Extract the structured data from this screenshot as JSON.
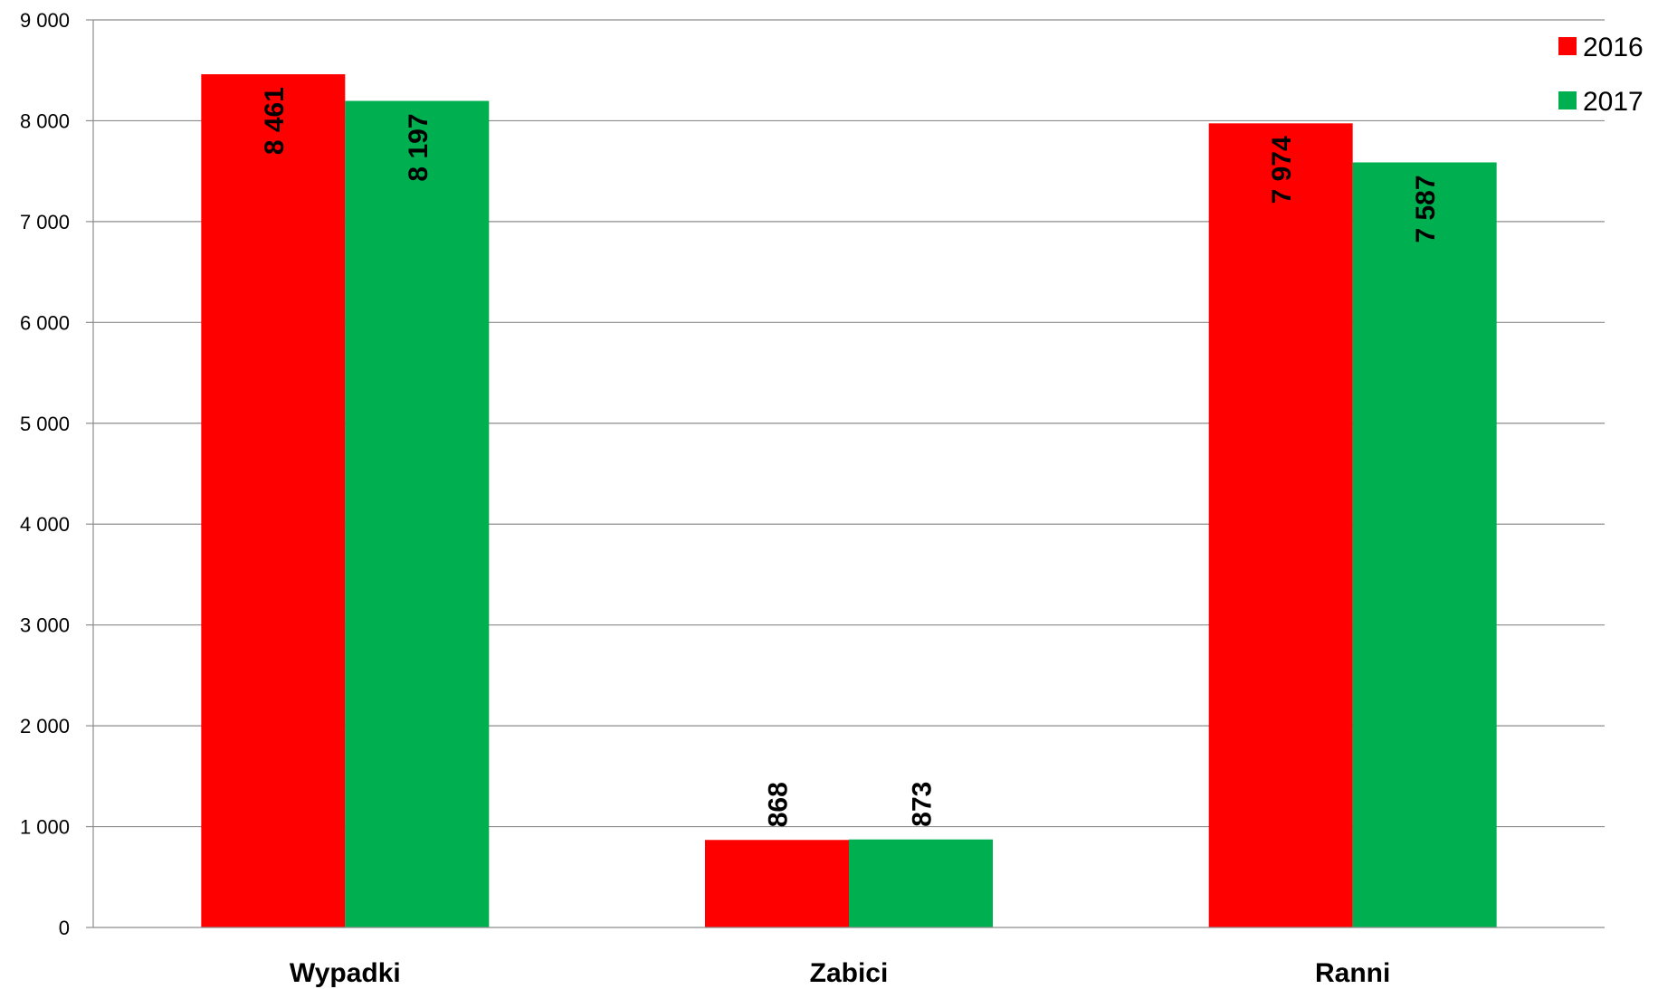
{
  "chart_data": {
    "type": "bar",
    "title": "",
    "xlabel": "",
    "ylabel": "",
    "categories": [
      "Wypadki",
      "Zabici",
      "Ranni"
    ],
    "series": [
      {
        "name": "2016",
        "color": "#ff0000",
        "values": [
          8461,
          868,
          7974
        ],
        "labels": [
          "8 461",
          "868",
          "7 974"
        ]
      },
      {
        "name": "2017",
        "color": "#00b050",
        "values": [
          8197,
          873,
          7587
        ],
        "labels": [
          "8 197",
          "873",
          "7 587"
        ]
      }
    ],
    "ylim": [
      0,
      9000
    ],
    "yticks": [
      0,
      1000,
      2000,
      3000,
      4000,
      5000,
      6000,
      7000,
      8000,
      9000
    ],
    "ytick_labels": [
      "0",
      "1 000",
      "2 000",
      "3 000",
      "4 000",
      "5 000",
      "6 000",
      "7 000",
      "8 000",
      "9 000"
    ],
    "grid": true,
    "legend_position": "top-right",
    "data_label_orientation": "vertical"
  }
}
